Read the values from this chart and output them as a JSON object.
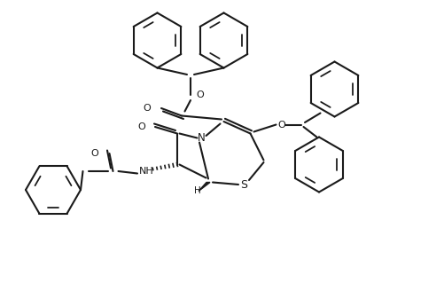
{
  "bg_color": "#ffffff",
  "line_color": "#1a1a1a",
  "line_width": 1.5,
  "fig_width": 5.02,
  "fig_height": 3.28,
  "dpi": 100,
  "xlim": [
    0,
    10.04
  ],
  "ylim": [
    0,
    6.56
  ]
}
